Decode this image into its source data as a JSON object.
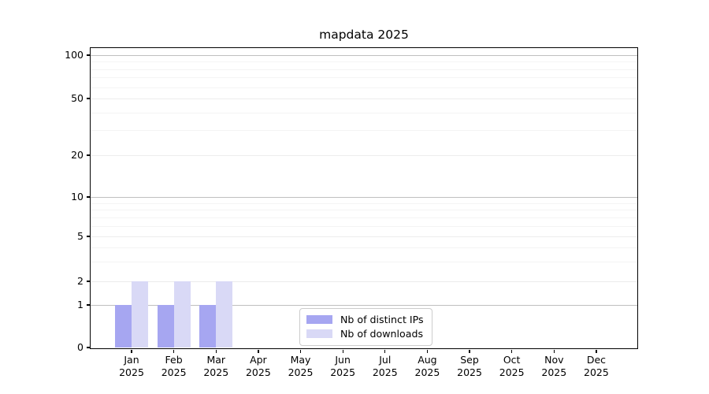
{
  "title": "mapdata 2025",
  "chart_data": {
    "type": "bar",
    "title": "mapdata 2025",
    "categories": [
      {
        "month": "Jan",
        "year": "2025"
      },
      {
        "month": "Feb",
        "year": "2025"
      },
      {
        "month": "Mar",
        "year": "2025"
      },
      {
        "month": "Apr",
        "year": "2025"
      },
      {
        "month": "May",
        "year": "2025"
      },
      {
        "month": "Jun",
        "year": "2025"
      },
      {
        "month": "Jul",
        "year": "2025"
      },
      {
        "month": "Aug",
        "year": "2025"
      },
      {
        "month": "Sep",
        "year": "2025"
      },
      {
        "month": "Oct",
        "year": "2025"
      },
      {
        "month": "Nov",
        "year": "2025"
      },
      {
        "month": "Dec",
        "year": "2025"
      }
    ],
    "series": [
      {
        "name": "Nb of distinct IPs",
        "color": "#a6a6f1",
        "values": [
          1,
          1,
          1,
          0,
          0,
          0,
          0,
          0,
          0,
          0,
          0,
          0
        ]
      },
      {
        "name": "Nb of downloads",
        "color": "#d9d9f6",
        "values": [
          2,
          2,
          2,
          0,
          0,
          0,
          0,
          0,
          0,
          0,
          0,
          0
        ]
      }
    ],
    "y_axis": {
      "scale": "log-like",
      "ticks": [
        100,
        50,
        20,
        10,
        5,
        2,
        1,
        0
      ],
      "minor_gridlines": [
        3,
        4,
        6,
        7,
        8,
        9,
        30,
        40,
        60,
        70,
        80,
        90
      ],
      "ylim": [
        0,
        100
      ]
    },
    "x_axis": {
      "label_lines": 2
    },
    "grid": {
      "decade_color": "#bfbfbf",
      "labeled_color": "#ececec",
      "minor_color": "#f4f4f4"
    },
    "legend": {
      "position": "lower-center"
    }
  }
}
